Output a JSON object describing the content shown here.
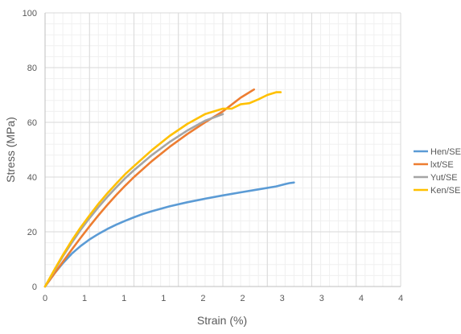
{
  "chart_data": {
    "type": "line",
    "title": "",
    "xlabel": "Strain (%)",
    "ylabel": "Stress (MPa)",
    "xlim": [
      0,
      4
    ],
    "ylim": [
      0,
      100
    ],
    "x_tick_labels": [
      "0",
      "1",
      "1",
      "1",
      "2",
      "2",
      "3",
      "3",
      "4",
      "4"
    ],
    "x_tick_values": [
      0,
      0.5,
      1.0,
      1.5,
      2.0,
      2.5,
      3.0,
      3.5,
      4.0,
      4.5
    ],
    "y_tick_labels": [
      "0",
      "20",
      "40",
      "60",
      "80",
      "100"
    ],
    "y_tick_values": [
      0,
      20,
      40,
      60,
      80,
      100
    ],
    "grid": true,
    "legend_position": "right",
    "series": [
      {
        "name": "Hen/SE",
        "color": "#5b9bd5",
        "points": [
          [
            0,
            0
          ],
          [
            0.1,
            4.5
          ],
          [
            0.2,
            8.5
          ],
          [
            0.3,
            12
          ],
          [
            0.4,
            14.8
          ],
          [
            0.5,
            17.2
          ],
          [
            0.6,
            19.2
          ],
          [
            0.7,
            21
          ],
          [
            0.8,
            22.6
          ],
          [
            0.9,
            24
          ],
          [
            1.0,
            25.3
          ],
          [
            1.1,
            26.5
          ],
          [
            1.2,
            27.5
          ],
          [
            1.4,
            29.3
          ],
          [
            1.6,
            30.8
          ],
          [
            1.8,
            32.1
          ],
          [
            2.0,
            33.3
          ],
          [
            2.2,
            34.4
          ],
          [
            2.4,
            35.5
          ],
          [
            2.6,
            36.6
          ],
          [
            2.7,
            37.4
          ],
          [
            2.75,
            37.8
          ],
          [
            2.8,
            38.0
          ]
        ]
      },
      {
        "name": "lxt/SE",
        "color": "#ed7d31",
        "points": [
          [
            0,
            0
          ],
          [
            0.1,
            4.5
          ],
          [
            0.2,
            9
          ],
          [
            0.3,
            13.5
          ],
          [
            0.4,
            17.8
          ],
          [
            0.5,
            22
          ],
          [
            0.6,
            26
          ],
          [
            0.7,
            29.8
          ],
          [
            0.8,
            33.4
          ],
          [
            0.9,
            36.8
          ],
          [
            1.0,
            40
          ],
          [
            1.2,
            45.8
          ],
          [
            1.4,
            51
          ],
          [
            1.6,
            55.7
          ],
          [
            1.8,
            60
          ],
          [
            2.0,
            64
          ],
          [
            2.2,
            69
          ],
          [
            2.3,
            71
          ],
          [
            2.35,
            72
          ]
        ]
      },
      {
        "name": "Yut/SE",
        "color": "#a5a5a5",
        "points": [
          [
            0,
            0
          ],
          [
            0.1,
            5.5
          ],
          [
            0.2,
            11
          ],
          [
            0.3,
            16
          ],
          [
            0.4,
            20.7
          ],
          [
            0.5,
            25
          ],
          [
            0.6,
            29
          ],
          [
            0.7,
            32.7
          ],
          [
            0.8,
            36.2
          ],
          [
            0.9,
            39.5
          ],
          [
            1.0,
            42.5
          ],
          [
            1.2,
            48
          ],
          [
            1.4,
            52.8
          ],
          [
            1.6,
            57
          ],
          [
            1.8,
            60.6
          ],
          [
            2.0,
            63
          ]
        ]
      },
      {
        "name": "Ken/SE",
        "color": "#ffc000",
        "points": [
          [
            0,
            0
          ],
          [
            0.1,
            5.8
          ],
          [
            0.2,
            11.5
          ],
          [
            0.3,
            16.8
          ],
          [
            0.4,
            21.6
          ],
          [
            0.5,
            26
          ],
          [
            0.6,
            30.2
          ],
          [
            0.7,
            34
          ],
          [
            0.8,
            37.6
          ],
          [
            0.9,
            41
          ],
          [
            1.0,
            44
          ],
          [
            1.2,
            49.8
          ],
          [
            1.4,
            55
          ],
          [
            1.6,
            59.4
          ],
          [
            1.8,
            63
          ],
          [
            2.0,
            65
          ],
          [
            2.1,
            65
          ],
          [
            2.2,
            66.6
          ],
          [
            2.3,
            67
          ],
          [
            2.4,
            68.4
          ],
          [
            2.5,
            70
          ],
          [
            2.6,
            71
          ],
          [
            2.65,
            71
          ]
        ]
      }
    ]
  }
}
